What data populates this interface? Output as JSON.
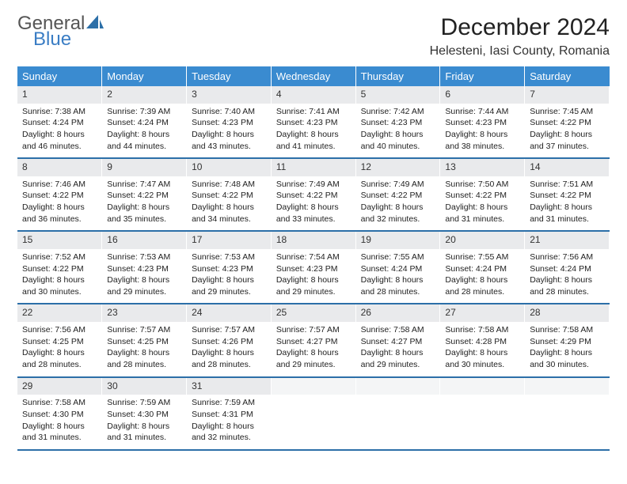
{
  "logo": {
    "general": "General",
    "blue": "Blue"
  },
  "header": {
    "title": "December 2024",
    "location": "Helesteni, Iasi County, Romania"
  },
  "styling": {
    "header_bg": "#3a8bd0",
    "header_text": "#ffffff",
    "daynum_bg": "#e9eaec",
    "week_border": "#2c6fa8",
    "page_bg": "#ffffff",
    "font_family": "Arial",
    "title_fontsize": 30,
    "location_fontsize": 16,
    "dayheader_fontsize": 13,
    "cell_fontsize": 10.5
  },
  "calendar": {
    "day_names": [
      "Sunday",
      "Monday",
      "Tuesday",
      "Wednesday",
      "Thursday",
      "Friday",
      "Saturday"
    ],
    "weeks": [
      [
        {
          "num": "1",
          "sunrise": "Sunrise: 7:38 AM",
          "sunset": "Sunset: 4:24 PM",
          "day1": "Daylight: 8 hours",
          "day2": "and 46 minutes."
        },
        {
          "num": "2",
          "sunrise": "Sunrise: 7:39 AM",
          "sunset": "Sunset: 4:24 PM",
          "day1": "Daylight: 8 hours",
          "day2": "and 44 minutes."
        },
        {
          "num": "3",
          "sunrise": "Sunrise: 7:40 AM",
          "sunset": "Sunset: 4:23 PM",
          "day1": "Daylight: 8 hours",
          "day2": "and 43 minutes."
        },
        {
          "num": "4",
          "sunrise": "Sunrise: 7:41 AM",
          "sunset": "Sunset: 4:23 PM",
          "day1": "Daylight: 8 hours",
          "day2": "and 41 minutes."
        },
        {
          "num": "5",
          "sunrise": "Sunrise: 7:42 AM",
          "sunset": "Sunset: 4:23 PM",
          "day1": "Daylight: 8 hours",
          "day2": "and 40 minutes."
        },
        {
          "num": "6",
          "sunrise": "Sunrise: 7:44 AM",
          "sunset": "Sunset: 4:23 PM",
          "day1": "Daylight: 8 hours",
          "day2": "and 38 minutes."
        },
        {
          "num": "7",
          "sunrise": "Sunrise: 7:45 AM",
          "sunset": "Sunset: 4:22 PM",
          "day1": "Daylight: 8 hours",
          "day2": "and 37 minutes."
        }
      ],
      [
        {
          "num": "8",
          "sunrise": "Sunrise: 7:46 AM",
          "sunset": "Sunset: 4:22 PM",
          "day1": "Daylight: 8 hours",
          "day2": "and 36 minutes."
        },
        {
          "num": "9",
          "sunrise": "Sunrise: 7:47 AM",
          "sunset": "Sunset: 4:22 PM",
          "day1": "Daylight: 8 hours",
          "day2": "and 35 minutes."
        },
        {
          "num": "10",
          "sunrise": "Sunrise: 7:48 AM",
          "sunset": "Sunset: 4:22 PM",
          "day1": "Daylight: 8 hours",
          "day2": "and 34 minutes."
        },
        {
          "num": "11",
          "sunrise": "Sunrise: 7:49 AM",
          "sunset": "Sunset: 4:22 PM",
          "day1": "Daylight: 8 hours",
          "day2": "and 33 minutes."
        },
        {
          "num": "12",
          "sunrise": "Sunrise: 7:49 AM",
          "sunset": "Sunset: 4:22 PM",
          "day1": "Daylight: 8 hours",
          "day2": "and 32 minutes."
        },
        {
          "num": "13",
          "sunrise": "Sunrise: 7:50 AM",
          "sunset": "Sunset: 4:22 PM",
          "day1": "Daylight: 8 hours",
          "day2": "and 31 minutes."
        },
        {
          "num": "14",
          "sunrise": "Sunrise: 7:51 AM",
          "sunset": "Sunset: 4:22 PM",
          "day1": "Daylight: 8 hours",
          "day2": "and 31 minutes."
        }
      ],
      [
        {
          "num": "15",
          "sunrise": "Sunrise: 7:52 AM",
          "sunset": "Sunset: 4:22 PM",
          "day1": "Daylight: 8 hours",
          "day2": "and 30 minutes."
        },
        {
          "num": "16",
          "sunrise": "Sunrise: 7:53 AM",
          "sunset": "Sunset: 4:23 PM",
          "day1": "Daylight: 8 hours",
          "day2": "and 29 minutes."
        },
        {
          "num": "17",
          "sunrise": "Sunrise: 7:53 AM",
          "sunset": "Sunset: 4:23 PM",
          "day1": "Daylight: 8 hours",
          "day2": "and 29 minutes."
        },
        {
          "num": "18",
          "sunrise": "Sunrise: 7:54 AM",
          "sunset": "Sunset: 4:23 PM",
          "day1": "Daylight: 8 hours",
          "day2": "and 29 minutes."
        },
        {
          "num": "19",
          "sunrise": "Sunrise: 7:55 AM",
          "sunset": "Sunset: 4:24 PM",
          "day1": "Daylight: 8 hours",
          "day2": "and 28 minutes."
        },
        {
          "num": "20",
          "sunrise": "Sunrise: 7:55 AM",
          "sunset": "Sunset: 4:24 PM",
          "day1": "Daylight: 8 hours",
          "day2": "and 28 minutes."
        },
        {
          "num": "21",
          "sunrise": "Sunrise: 7:56 AM",
          "sunset": "Sunset: 4:24 PM",
          "day1": "Daylight: 8 hours",
          "day2": "and 28 minutes."
        }
      ],
      [
        {
          "num": "22",
          "sunrise": "Sunrise: 7:56 AM",
          "sunset": "Sunset: 4:25 PM",
          "day1": "Daylight: 8 hours",
          "day2": "and 28 minutes."
        },
        {
          "num": "23",
          "sunrise": "Sunrise: 7:57 AM",
          "sunset": "Sunset: 4:25 PM",
          "day1": "Daylight: 8 hours",
          "day2": "and 28 minutes."
        },
        {
          "num": "24",
          "sunrise": "Sunrise: 7:57 AM",
          "sunset": "Sunset: 4:26 PM",
          "day1": "Daylight: 8 hours",
          "day2": "and 28 minutes."
        },
        {
          "num": "25",
          "sunrise": "Sunrise: 7:57 AM",
          "sunset": "Sunset: 4:27 PM",
          "day1": "Daylight: 8 hours",
          "day2": "and 29 minutes."
        },
        {
          "num": "26",
          "sunrise": "Sunrise: 7:58 AM",
          "sunset": "Sunset: 4:27 PM",
          "day1": "Daylight: 8 hours",
          "day2": "and 29 minutes."
        },
        {
          "num": "27",
          "sunrise": "Sunrise: 7:58 AM",
          "sunset": "Sunset: 4:28 PM",
          "day1": "Daylight: 8 hours",
          "day2": "and 30 minutes."
        },
        {
          "num": "28",
          "sunrise": "Sunrise: 7:58 AM",
          "sunset": "Sunset: 4:29 PM",
          "day1": "Daylight: 8 hours",
          "day2": "and 30 minutes."
        }
      ],
      [
        {
          "num": "29",
          "sunrise": "Sunrise: 7:58 AM",
          "sunset": "Sunset: 4:30 PM",
          "day1": "Daylight: 8 hours",
          "day2": "and 31 minutes."
        },
        {
          "num": "30",
          "sunrise": "Sunrise: 7:59 AM",
          "sunset": "Sunset: 4:30 PM",
          "day1": "Daylight: 8 hours",
          "day2": "and 31 minutes."
        },
        {
          "num": "31",
          "sunrise": "Sunrise: 7:59 AM",
          "sunset": "Sunset: 4:31 PM",
          "day1": "Daylight: 8 hours",
          "day2": "and 32 minutes."
        },
        {
          "empty": true
        },
        {
          "empty": true
        },
        {
          "empty": true
        },
        {
          "empty": true
        }
      ]
    ]
  }
}
